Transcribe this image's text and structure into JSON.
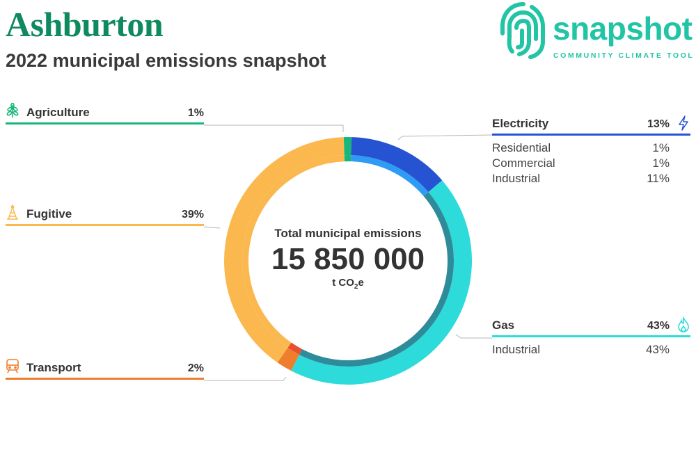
{
  "header": {
    "title": "Ashburton",
    "subtitle": "2022 municipal emissions snapshot"
  },
  "logo": {
    "word": "snapshot",
    "tagline": "COMMUNITY CLIMATE TOOL",
    "color": "#22c4a6"
  },
  "chart_data": {
    "type": "pie",
    "center": {
      "label": "Total municipal emissions",
      "value": "15 850 000",
      "unit_prefix": "t CO",
      "unit_sub": "2",
      "unit_suffix": "e"
    },
    "outer_ring": [
      {
        "name": "Agriculture",
        "value": 1,
        "display": "1%",
        "color": "#17b77b"
      },
      {
        "name": "Electricity",
        "value": 13,
        "display": "13%",
        "color": "#2653d1"
      },
      {
        "name": "Gas",
        "value": 43,
        "display": "43%",
        "color": "#2ddbdb"
      },
      {
        "name": "Transport",
        "value": 2,
        "display": "2%",
        "color": "#ef7d2e"
      },
      {
        "name": "Fugitive",
        "value": 39,
        "display": "39%",
        "color": "#fbb84f"
      }
    ],
    "inner_ring": [
      {
        "name": "Agriculture",
        "value": 1,
        "color": "#17b77b"
      },
      {
        "name": "Electricity",
        "value": 13,
        "color": "#2e9bf5"
      },
      {
        "name": "Gas",
        "value": 43,
        "color": "#2e8b99"
      },
      {
        "name": "Transport",
        "value": 2,
        "color": "#e8512f"
      },
      {
        "name": "Fugitive",
        "value": 39,
        "color": "#fbb84f"
      }
    ],
    "sectors": {
      "agriculture": {
        "name": "Agriculture",
        "pct": "1%",
        "color": "#17b77b",
        "icon": "wheat-icon"
      },
      "fugitive": {
        "name": "Fugitive",
        "pct": "39%",
        "color": "#fbb84f",
        "icon": "oil-rig-icon"
      },
      "transport": {
        "name": "Transport",
        "pct": "2%",
        "color": "#ef7d2e",
        "icon": "train-icon"
      },
      "electricity": {
        "name": "Electricity",
        "pct": "13%",
        "color": "#2653d1",
        "icon": "lightning-icon",
        "subs": [
          {
            "name": "Residential",
            "pct": "1%"
          },
          {
            "name": "Commercial",
            "pct": "1%"
          },
          {
            "name": "Industrial",
            "pct": "11%"
          }
        ]
      },
      "gas": {
        "name": "Gas",
        "pct": "43%",
        "color": "#2ddbdb",
        "icon": "flame-icon",
        "subs": [
          {
            "name": "Industrial",
            "pct": "43%"
          }
        ]
      }
    }
  }
}
